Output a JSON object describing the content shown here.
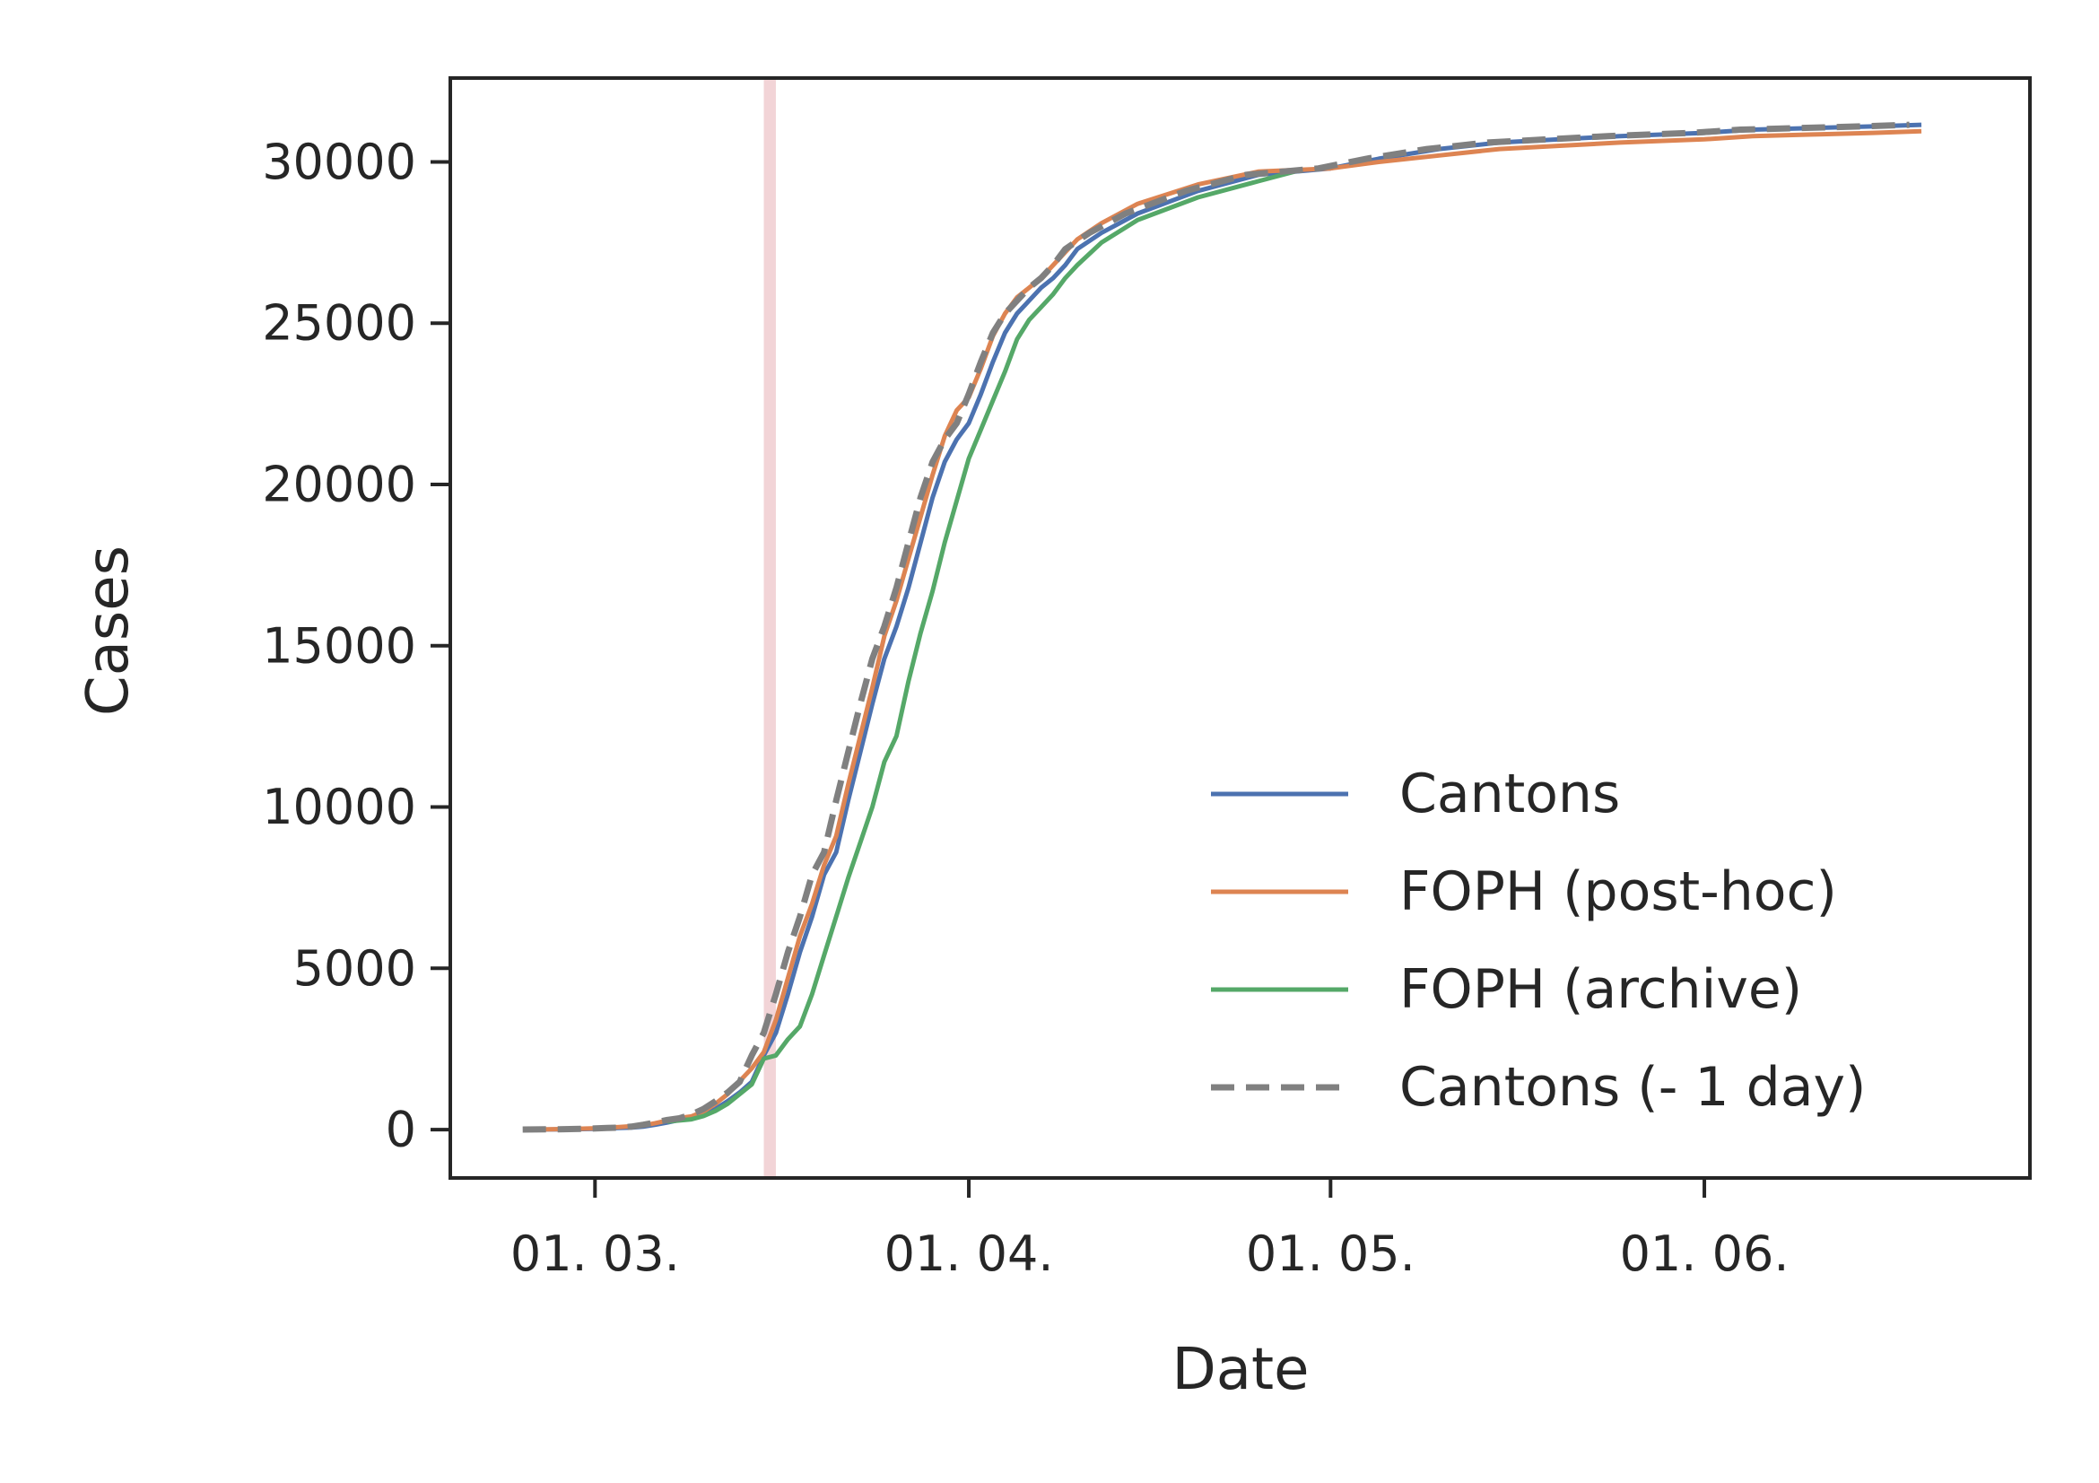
{
  "chart_data": {
    "type": "line",
    "xlabel": "Date",
    "ylabel": "Cases",
    "xlim": [
      "2020-02-18",
      "2020-06-28"
    ],
    "ylim": [
      -1500,
      32600
    ],
    "x_ticks": [
      {
        "date": "2020-03-01",
        "label": "01. 03."
      },
      {
        "date": "2020-04-01",
        "label": "01. 04."
      },
      {
        "date": "2020-05-01",
        "label": "01. 05."
      },
      {
        "date": "2020-06-01",
        "label": "01. 06."
      }
    ],
    "y_ticks": [
      {
        "value": 0,
        "label": "0"
      },
      {
        "value": 5000,
        "label": "5000"
      },
      {
        "value": 10000,
        "label": "10000"
      },
      {
        "value": 15000,
        "label": "15000"
      },
      {
        "value": 20000,
        "label": "20000"
      },
      {
        "value": 25000,
        "label": "25000"
      },
      {
        "value": 30000,
        "label": "30000"
      }
    ],
    "shaded_span": {
      "x0": "2020-03-15",
      "x1": "2020-03-16",
      "color": "#f2d4d7"
    },
    "grid": false,
    "legend": {
      "location": "lower-right"
    },
    "series": [
      {
        "name": "Cantons",
        "color": "#4c72b0",
        "style": "solid",
        "points": [
          [
            "2020-02-25",
            1
          ],
          [
            "2020-02-28",
            10
          ],
          [
            "2020-03-01",
            25
          ],
          [
            "2020-03-03",
            50
          ],
          [
            "2020-03-04",
            60
          ],
          [
            "2020-03-05",
            90
          ],
          [
            "2020-03-06",
            150
          ],
          [
            "2020-03-07",
            220
          ],
          [
            "2020-03-08",
            300
          ],
          [
            "2020-03-09",
            350
          ],
          [
            "2020-03-10",
            470
          ],
          [
            "2020-03-11",
            640
          ],
          [
            "2020-03-12",
            880
          ],
          [
            "2020-03-13",
            1150
          ],
          [
            "2020-03-14",
            1480
          ],
          [
            "2020-03-15",
            2300
          ],
          [
            "2020-03-16",
            3000
          ],
          [
            "2020-03-17",
            4200
          ],
          [
            "2020-03-18",
            5500
          ],
          [
            "2020-03-19",
            6600
          ],
          [
            "2020-03-20",
            7900
          ],
          [
            "2020-03-21",
            8600
          ],
          [
            "2020-03-22",
            10200
          ],
          [
            "2020-03-23",
            11700
          ],
          [
            "2020-03-24",
            13200
          ],
          [
            "2020-03-25",
            14600
          ],
          [
            "2020-03-26",
            15600
          ],
          [
            "2020-03-27",
            16800
          ],
          [
            "2020-03-28",
            18200
          ],
          [
            "2020-03-29",
            19600
          ],
          [
            "2020-03-30",
            20700
          ],
          [
            "2020-03-31",
            21400
          ],
          [
            "2020-04-01",
            21900
          ],
          [
            "2020-04-02",
            22800
          ],
          [
            "2020-04-03",
            23800
          ],
          [
            "2020-04-04",
            24700
          ],
          [
            "2020-04-05",
            25300
          ],
          [
            "2020-04-06",
            25700
          ],
          [
            "2020-04-07",
            26100
          ],
          [
            "2020-04-08",
            26400
          ],
          [
            "2020-04-09",
            26800
          ],
          [
            "2020-04-10",
            27300
          ],
          [
            "2020-04-12",
            27800
          ],
          [
            "2020-04-15",
            28400
          ],
          [
            "2020-04-20",
            29100
          ],
          [
            "2020-04-25",
            29600
          ],
          [
            "2020-05-01",
            29800
          ],
          [
            "2020-05-05",
            30100
          ],
          [
            "2020-05-10",
            30400
          ],
          [
            "2020-05-15",
            30600
          ],
          [
            "2020-05-20",
            30700
          ],
          [
            "2020-05-25",
            30800
          ],
          [
            "2020-06-01",
            30900
          ],
          [
            "2020-06-05",
            31000
          ],
          [
            "2020-06-10",
            31050
          ],
          [
            "2020-06-15",
            31100
          ],
          [
            "2020-06-19",
            31150
          ]
        ]
      },
      {
        "name": "FOPH (post-hoc)",
        "color": "#dd8452",
        "style": "solid",
        "points": [
          [
            "2020-02-25",
            1
          ],
          [
            "2020-02-28",
            20
          ],
          [
            "2020-03-01",
            40
          ],
          [
            "2020-03-03",
            80
          ],
          [
            "2020-03-05",
            130
          ],
          [
            "2020-03-06",
            200
          ],
          [
            "2020-03-07",
            280
          ],
          [
            "2020-03-08",
            360
          ],
          [
            "2020-03-09",
            410
          ],
          [
            "2020-03-10",
            560
          ],
          [
            "2020-03-11",
            800
          ],
          [
            "2020-03-12",
            1100
          ],
          [
            "2020-03-13",
            1500
          ],
          [
            "2020-03-14",
            1900
          ],
          [
            "2020-03-15",
            2400
          ],
          [
            "2020-03-16",
            3400
          ],
          [
            "2020-03-17",
            4700
          ],
          [
            "2020-03-18",
            6000
          ],
          [
            "2020-03-19",
            7000
          ],
          [
            "2020-03-20",
            8200
          ],
          [
            "2020-03-21",
            9100
          ],
          [
            "2020-03-22",
            10700
          ],
          [
            "2020-03-23",
            12200
          ],
          [
            "2020-03-24",
            13700
          ],
          [
            "2020-03-25",
            15300
          ],
          [
            "2020-03-26",
            16400
          ],
          [
            "2020-03-27",
            17700
          ],
          [
            "2020-03-28",
            19000
          ],
          [
            "2020-03-29",
            20300
          ],
          [
            "2020-03-30",
            21500
          ],
          [
            "2020-03-31",
            22300
          ],
          [
            "2020-04-01",
            22700
          ],
          [
            "2020-04-02",
            23600
          ],
          [
            "2020-04-03",
            24600
          ],
          [
            "2020-04-04",
            25300
          ],
          [
            "2020-04-05",
            25800
          ],
          [
            "2020-04-06",
            26100
          ],
          [
            "2020-04-07",
            26400
          ],
          [
            "2020-04-08",
            26800
          ],
          [
            "2020-04-09",
            27200
          ],
          [
            "2020-04-10",
            27600
          ],
          [
            "2020-04-12",
            28100
          ],
          [
            "2020-04-15",
            28700
          ],
          [
            "2020-04-20",
            29300
          ],
          [
            "2020-04-25",
            29700
          ],
          [
            "2020-05-01",
            29800
          ],
          [
            "2020-05-05",
            30000
          ],
          [
            "2020-05-10",
            30200
          ],
          [
            "2020-05-15",
            30400
          ],
          [
            "2020-05-20",
            30500
          ],
          [
            "2020-05-25",
            30600
          ],
          [
            "2020-06-01",
            30700
          ],
          [
            "2020-06-05",
            30800
          ],
          [
            "2020-06-10",
            30850
          ],
          [
            "2020-06-15",
            30900
          ],
          [
            "2020-06-19",
            30950
          ]
        ]
      },
      {
        "name": "FOPH (archive)",
        "color": "#55a868",
        "style": "solid",
        "points": [
          [
            "2020-03-07",
            250
          ],
          [
            "2020-03-09",
            320
          ],
          [
            "2020-03-10",
            420
          ],
          [
            "2020-03-11",
            580
          ],
          [
            "2020-03-12",
            800
          ],
          [
            "2020-03-13",
            1100
          ],
          [
            "2020-03-14",
            1400
          ],
          [
            "2020-03-15",
            2200
          ],
          [
            "2020-03-16",
            2300
          ],
          [
            "2020-03-17",
            2800
          ],
          [
            "2020-03-18",
            3200
          ],
          [
            "2020-03-19",
            4200
          ],
          [
            "2020-03-20",
            5400
          ],
          [
            "2020-03-21",
            6600
          ],
          [
            "2020-03-22",
            7800
          ],
          [
            "2020-03-23",
            8900
          ],
          [
            "2020-03-24",
            10000
          ],
          [
            "2020-03-25",
            11400
          ],
          [
            "2020-03-26",
            12200
          ],
          [
            "2020-03-27",
            13900
          ],
          [
            "2020-03-28",
            15400
          ],
          [
            "2020-03-29",
            16700
          ],
          [
            "2020-03-30",
            18200
          ],
          [
            "2020-03-31",
            19500
          ],
          [
            "2020-04-01",
            20800
          ],
          [
            "2020-04-02",
            21700
          ],
          [
            "2020-04-03",
            22600
          ],
          [
            "2020-04-04",
            23500
          ],
          [
            "2020-04-05",
            24500
          ],
          [
            "2020-04-06",
            25100
          ],
          [
            "2020-04-07",
            25500
          ],
          [
            "2020-04-08",
            25900
          ],
          [
            "2020-04-09",
            26400
          ],
          [
            "2020-04-10",
            26800
          ],
          [
            "2020-04-12",
            27500
          ],
          [
            "2020-04-15",
            28200
          ],
          [
            "2020-04-20",
            28900
          ],
          [
            "2020-04-25",
            29400
          ],
          [
            "2020-04-28",
            29700
          ]
        ]
      },
      {
        "name": "Cantons (- 1 day)",
        "color": "#808080",
        "style": "dashed",
        "points": [
          [
            "2020-02-24",
            1
          ],
          [
            "2020-02-27",
            10
          ],
          [
            "2020-02-29",
            25
          ],
          [
            "2020-03-02",
            50
          ],
          [
            "2020-03-03",
            60
          ],
          [
            "2020-03-04",
            90
          ],
          [
            "2020-03-05",
            150
          ],
          [
            "2020-03-06",
            220
          ],
          [
            "2020-03-07",
            300
          ],
          [
            "2020-03-08",
            350
          ],
          [
            "2020-03-09",
            470
          ],
          [
            "2020-03-10",
            640
          ],
          [
            "2020-03-11",
            880
          ],
          [
            "2020-03-12",
            1150
          ],
          [
            "2020-03-13",
            1480
          ],
          [
            "2020-03-14",
            2300
          ],
          [
            "2020-03-15",
            3000
          ],
          [
            "2020-03-16",
            4200
          ],
          [
            "2020-03-17",
            5500
          ],
          [
            "2020-03-18",
            6600
          ],
          [
            "2020-03-19",
            7900
          ],
          [
            "2020-03-20",
            8600
          ],
          [
            "2020-03-21",
            10200
          ],
          [
            "2020-03-22",
            11700
          ],
          [
            "2020-03-23",
            13200
          ],
          [
            "2020-03-24",
            14600
          ],
          [
            "2020-03-25",
            15600
          ],
          [
            "2020-03-26",
            16800
          ],
          [
            "2020-03-27",
            18200
          ],
          [
            "2020-03-28",
            19600
          ],
          [
            "2020-03-29",
            20700
          ],
          [
            "2020-03-30",
            21400
          ],
          [
            "2020-03-31",
            21900
          ],
          [
            "2020-04-01",
            22800
          ],
          [
            "2020-04-02",
            23800
          ],
          [
            "2020-04-03",
            24700
          ],
          [
            "2020-04-04",
            25300
          ],
          [
            "2020-04-05",
            25700
          ],
          [
            "2020-04-06",
            26100
          ],
          [
            "2020-04-07",
            26400
          ],
          [
            "2020-04-08",
            26800
          ],
          [
            "2020-04-09",
            27300
          ],
          [
            "2020-04-11",
            27800
          ],
          [
            "2020-04-14",
            28400
          ],
          [
            "2020-04-19",
            29100
          ],
          [
            "2020-04-24",
            29600
          ],
          [
            "2020-04-30",
            29800
          ],
          [
            "2020-05-04",
            30100
          ],
          [
            "2020-05-09",
            30400
          ],
          [
            "2020-05-14",
            30600
          ],
          [
            "2020-05-19",
            30700
          ],
          [
            "2020-05-24",
            30800
          ],
          [
            "2020-05-31",
            30900
          ],
          [
            "2020-06-04",
            31000
          ],
          [
            "2020-06-09",
            31050
          ],
          [
            "2020-06-14",
            31100
          ],
          [
            "2020-06-18",
            31150
          ]
        ]
      }
    ]
  }
}
